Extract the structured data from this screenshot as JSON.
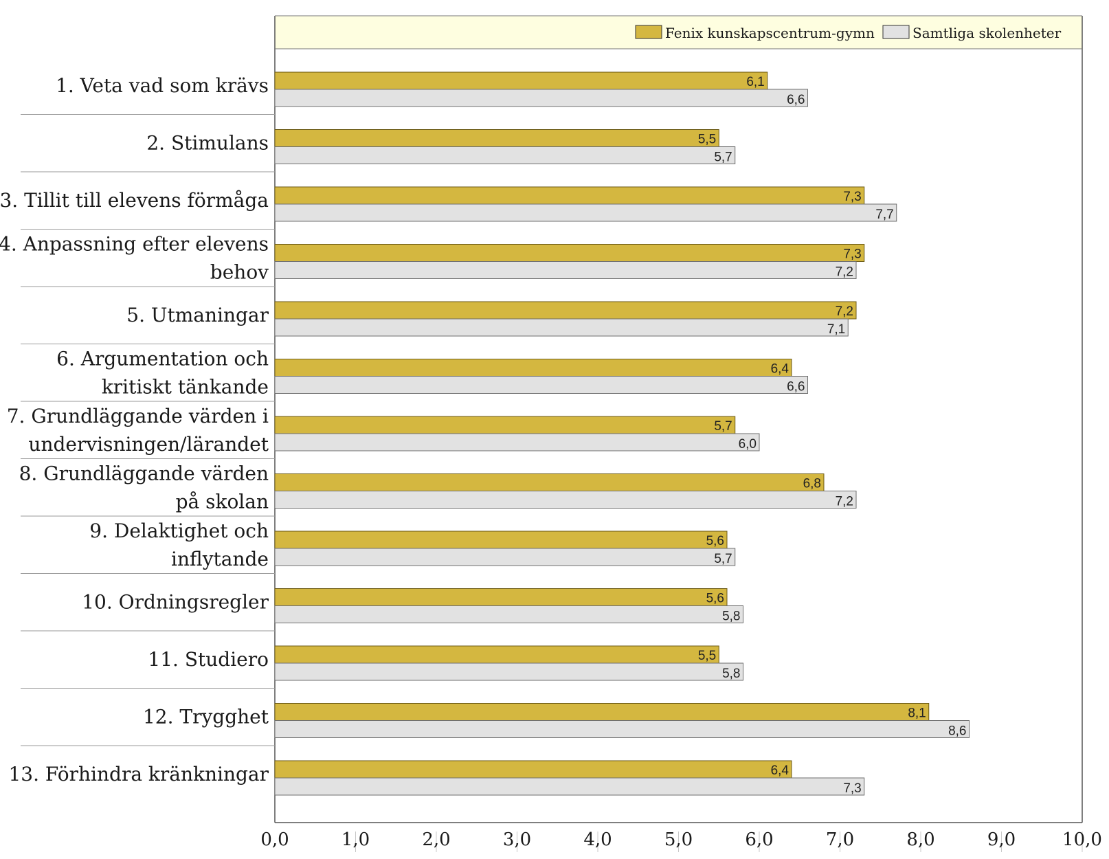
{
  "chart_data": {
    "type": "bar",
    "orientation": "horizontal",
    "categories": [
      "1. Veta vad som krävs",
      "2. Stimulans",
      "3. Tillit till elevens förmåga",
      "4. Anpassning efter elevens behov",
      "5. Utmaningar",
      "6. Argumentation och kritiskt tänkande",
      "7. Grundläggande värden i undervisningen/lärandet",
      "8. Grundläggande värden på skolan",
      "9. Delaktighet och inflytande",
      "10. Ordningsregler",
      "11. Studiero",
      "12. Trygghet",
      "13. Förhindra kränkningar"
    ],
    "category_lines": [
      [
        "1. Veta vad som krävs"
      ],
      [
        "2. Stimulans"
      ],
      [
        "3. Tillit till elevens förmåga"
      ],
      [
        "4. Anpassning efter elevens",
        "behov"
      ],
      [
        "5. Utmaningar"
      ],
      [
        "6. Argumentation och",
        "kritiskt tänkande"
      ],
      [
        "7. Grundläggande värden i",
        "undervisningen/lärandet"
      ],
      [
        "8. Grundläggande värden",
        "på skolan"
      ],
      [
        "9. Delaktighet och",
        "inflytande"
      ],
      [
        "10. Ordningsregler"
      ],
      [
        "11. Studiero"
      ],
      [
        "12. Trygghet"
      ],
      [
        "13. Förhindra kränkningar"
      ]
    ],
    "series": [
      {
        "name": "Fenix kunskapscentrum-gymn",
        "color": "#d4b740",
        "values": [
          6.1,
          5.5,
          7.3,
          7.3,
          7.2,
          6.4,
          5.7,
          6.8,
          5.6,
          5.6,
          5.5,
          8.1,
          6.4
        ],
        "labels": [
          "6,1",
          "5,5",
          "7,3",
          "7,3",
          "7,2",
          "6,4",
          "5,7",
          "6,8",
          "5,6",
          "5,6",
          "5,5",
          "8,1",
          "6,4"
        ]
      },
      {
        "name": "Samtliga skolenheter",
        "color": "#e2e2e2",
        "values": [
          6.6,
          5.7,
          7.7,
          7.2,
          7.1,
          6.6,
          6.0,
          7.2,
          5.7,
          5.8,
          5.8,
          8.6,
          7.3
        ],
        "labels": [
          "6,6",
          "5,7",
          "7,7",
          "7,2",
          "7,1",
          "6,6",
          "6,0",
          "7,2",
          "5,7",
          "5,8",
          "5,8",
          "8,6",
          "7,3"
        ]
      }
    ],
    "xlim": [
      0,
      10
    ],
    "xticks": [
      "0,0",
      "1,0",
      "2,0",
      "3,0",
      "4,0",
      "5,0",
      "6,0",
      "7,0",
      "8,0",
      "9,0",
      "10,0"
    ],
    "legend": {
      "placement": "top",
      "background": "#fefee0"
    },
    "grid": false,
    "title": "",
    "xlabel": "",
    "ylabel": ""
  }
}
